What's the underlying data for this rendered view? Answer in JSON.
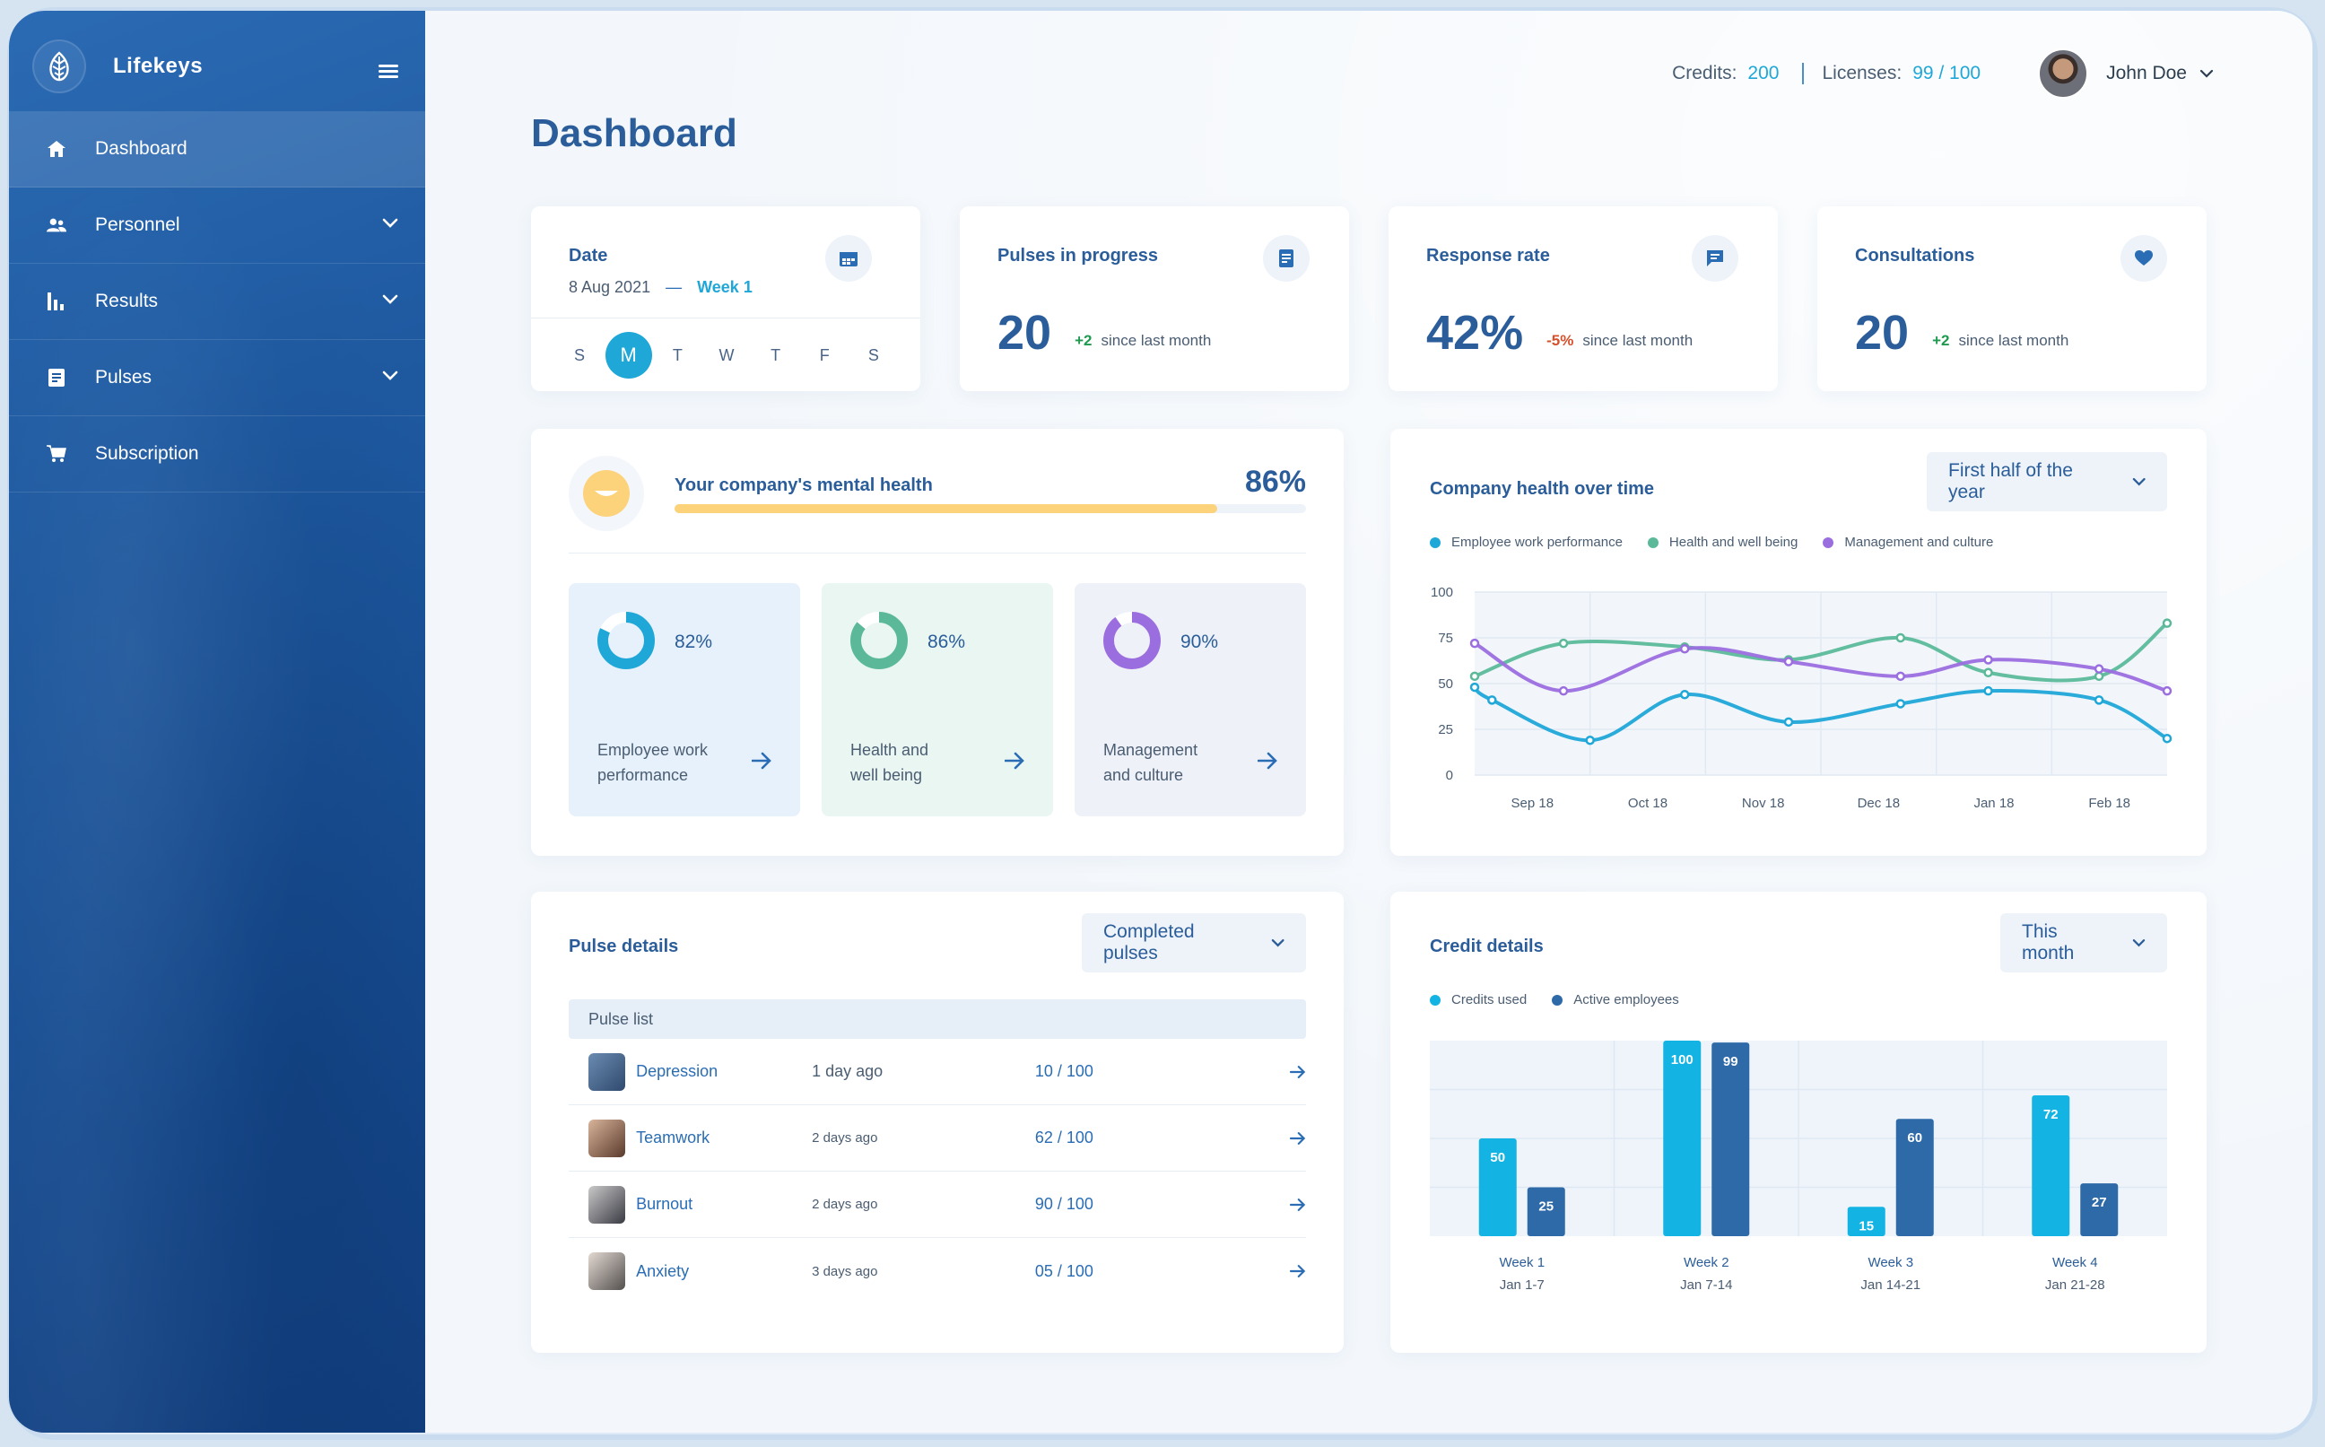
{
  "app": {
    "name": "Lifekeys"
  },
  "sidebar": {
    "items": [
      {
        "label": "Dashboard",
        "icon": "home-icon",
        "active": true,
        "has_submenu": false
      },
      {
        "label": "Personnel",
        "icon": "people-icon",
        "active": false,
        "has_submenu": true
      },
      {
        "label": "Results",
        "icon": "bar-chart-icon",
        "active": false,
        "has_submenu": true
      },
      {
        "label": "Pulses",
        "icon": "document-icon",
        "active": false,
        "has_submenu": true
      },
      {
        "label": "Subscription",
        "icon": "cart-icon",
        "active": false,
        "has_submenu": false
      }
    ]
  },
  "topbar": {
    "credits_label": "Credits:",
    "credits_value": "200",
    "licenses_label": "Licenses:",
    "licenses_value": "99 / 100",
    "user_name": "John Doe"
  },
  "page": {
    "title": "Dashboard"
  },
  "date_card": {
    "title": "Date",
    "date": "8 Aug 2021",
    "dash": "—",
    "week": "Week 1",
    "days": [
      "S",
      "M",
      "T",
      "W",
      "T",
      "F",
      "S"
    ],
    "selected_index": 1
  },
  "stats": [
    {
      "title": "Pulses in progress",
      "value": "20",
      "delta": "+2",
      "delta_type": "positive",
      "caption": "since last month",
      "icon": "document-icon"
    },
    {
      "title": "Response rate",
      "value": "42%",
      "delta": "-5%",
      "delta_type": "negative",
      "caption": "since last month",
      "icon": "chat-icon"
    },
    {
      "title": "Consultations",
      "value": "20",
      "delta": "+2",
      "delta_type": "positive",
      "caption": "since last month",
      "icon": "heart-icon"
    }
  ],
  "mental_health": {
    "title": "Your company's mental health",
    "percent_label": "86%",
    "progress": 0.86,
    "categories": [
      {
        "line1": "Employee work",
        "line2": "performance",
        "percent": "82%",
        "fraction": 0.82,
        "color": "#1fa7d8",
        "bg": "#e7f1fb"
      },
      {
        "line1": "Health and",
        "line2": "well being",
        "percent": "86%",
        "fraction": 0.86,
        "color": "#5bb99a",
        "bg": "#eaf6f2"
      },
      {
        "line1": "Management",
        "line2": "and culture",
        "percent": "90%",
        "fraction": 0.9,
        "color": "#9b6ee0",
        "bg": "#eef1f8"
      }
    ]
  },
  "company_health": {
    "title": "Company health over time",
    "select": "First half of the year"
  },
  "pulse_details": {
    "title": "Pulse details",
    "select": "Completed pulses",
    "list_header": "Pulse list",
    "rows": [
      {
        "name": "Depression",
        "time": "1 day ago",
        "score": "10 / 100"
      },
      {
        "name": "Teamwork",
        "time": "2 days ago",
        "score": "62 / 100"
      },
      {
        "name": "Burnout",
        "time": "2 days ago",
        "score": "90 / 100"
      },
      {
        "name": "Anxiety",
        "time": "3 days ago",
        "score": "05 / 100"
      }
    ]
  },
  "credit_details": {
    "title": "Credit details",
    "select": "This month"
  },
  "colors": {
    "accent": "#1fa7d8",
    "brand": "#2a5d99",
    "green": "#5bb99a",
    "purple": "#9b6ee0",
    "dark_blue": "#2f6aa8"
  },
  "chart_data": [
    {
      "type": "line",
      "title": "Company health over time",
      "x": [
        "Sep 18",
        "Oct 18",
        "Nov 18",
        "Dec 18",
        "Jan 18",
        "Feb 18"
      ],
      "ylim": [
        0,
        100
      ],
      "yticks": [
        0,
        25,
        50,
        75,
        100
      ],
      "grid": true,
      "legend": "top-left",
      "series": [
        {
          "name": "Employee work performance",
          "color": "#1fa7d8",
          "x": [
            0,
            0.15,
            1.0,
            1.82,
            2.72,
            3.69,
            4.45,
            5.41,
            6.0
          ],
          "values": [
            48,
            41,
            19,
            44,
            29,
            39,
            46,
            41,
            20
          ]
        },
        {
          "name": "Health and well being",
          "color": "#5bb99a",
          "x": [
            0,
            0.77,
            1.82,
            2.72,
            3.69,
            4.45,
            5.41,
            6.0
          ],
          "values": [
            54,
            72,
            70,
            63,
            75,
            56,
            54,
            83
          ]
        },
        {
          "name": "Management and culture",
          "color": "#9b6ee0",
          "x": [
            0,
            0.77,
            1.82,
            2.72,
            3.69,
            4.45,
            5.41,
            6.0
          ],
          "values": [
            72,
            46,
            69,
            62,
            54,
            63,
            58,
            46
          ]
        }
      ]
    },
    {
      "type": "bar",
      "title": "Credit details",
      "categories": [
        "Week 1",
        "Week 2",
        "Week 3",
        "Week 4"
      ],
      "category_sublabels": [
        "Jan 1-7",
        "Jan 7-14",
        "Jan 14-21",
        "Jan 21-28"
      ],
      "ylim": [
        0,
        100
      ],
      "grid": true,
      "legend": "top-left",
      "series": [
        {
          "name": "Credits used",
          "color": "#13b4e4",
          "values": [
            50,
            100,
            15,
            72
          ]
        },
        {
          "name": "Active employees",
          "color": "#2f6aa8",
          "values": [
            25,
            99,
            60,
            27
          ]
        }
      ]
    }
  ]
}
